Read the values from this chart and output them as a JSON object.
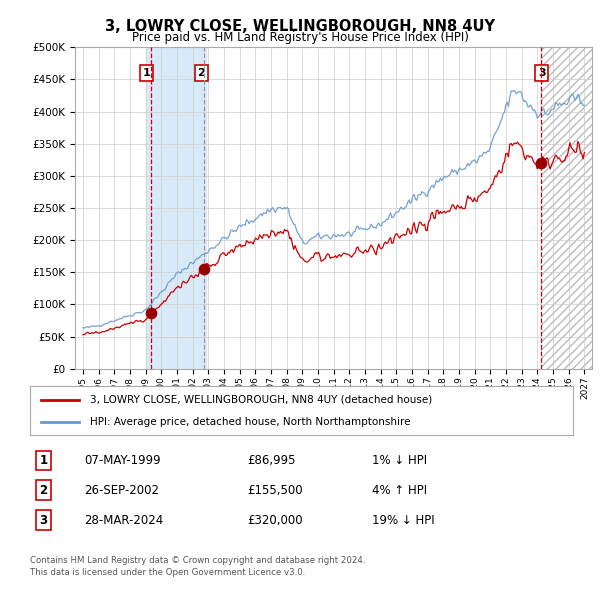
{
  "title": "3, LOWRY CLOSE, WELLINGBOROUGH, NN8 4UY",
  "subtitle": "Price paid vs. HM Land Registry's House Price Index (HPI)",
  "legend_line1": "3, LOWRY CLOSE, WELLINGBOROUGH, NN8 4UY (detached house)",
  "legend_line2": "HPI: Average price, detached house, North Northamptonshire",
  "footer1": "Contains HM Land Registry data © Crown copyright and database right 2024.",
  "footer2": "This data is licensed under the Open Government Licence v3.0.",
  "transactions": [
    {
      "num": 1,
      "date": "07-MAY-1999",
      "price": "£86,995",
      "hpi": "1% ↓ HPI"
    },
    {
      "num": 2,
      "date": "26-SEP-2002",
      "price": "£155,500",
      "hpi": "4% ↑ HPI"
    },
    {
      "num": 3,
      "date": "28-MAR-2024",
      "price": "£320,000",
      "hpi": "19% ↓ HPI"
    }
  ],
  "sale_dates": [
    1999.36,
    2002.74,
    2024.24
  ],
  "sale_prices": [
    86995,
    155500,
    320000
  ],
  "ylim": [
    0,
    500000
  ],
  "yticks": [
    0,
    50000,
    100000,
    150000,
    200000,
    250000,
    300000,
    350000,
    400000,
    450000,
    500000
  ],
  "xlim": [
    1994.5,
    2027.5
  ],
  "xticks": [
    1995,
    1996,
    1997,
    1998,
    1999,
    2000,
    2001,
    2002,
    2003,
    2004,
    2005,
    2006,
    2007,
    2008,
    2009,
    2010,
    2011,
    2012,
    2013,
    2014,
    2015,
    2016,
    2017,
    2018,
    2019,
    2020,
    2021,
    2022,
    2023,
    2024,
    2025,
    2026,
    2027
  ],
  "line_color_red": "#cc0000",
  "line_color_blue": "#6699cc",
  "fill_color_blue": "#cce0f0",
  "sale_marker_color": "#990000",
  "vline_color_red": "#cc0000",
  "vline_color_gray": "#999999",
  "highlight_box_color": "#d8eaf8",
  "hatch_color": "#bbbbbb",
  "background_color": "#ffffff",
  "grid_color": "#cccccc",
  "transaction_box_color": "#cc0000",
  "label_box_positions": [
    {
      "x": 1999.05,
      "label": "1"
    },
    {
      "x": 2002.55,
      "label": "2"
    },
    {
      "x": 2024.3,
      "label": "3"
    }
  ]
}
